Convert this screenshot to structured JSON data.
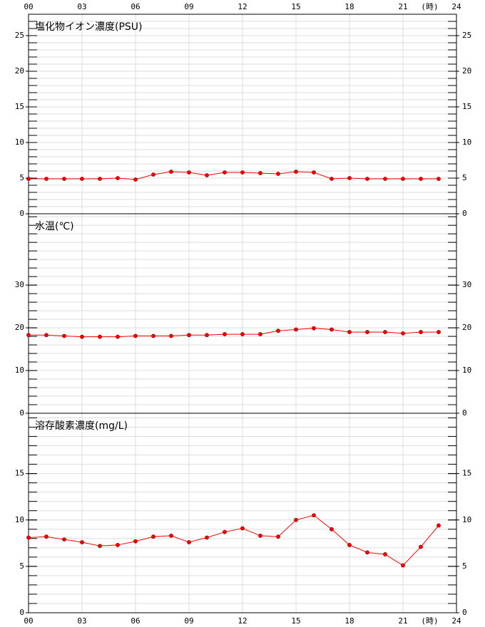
{
  "chart_data": [
    {
      "type": "line",
      "title": "塩化物イオン濃度(PSU)",
      "x_unit": "(時)",
      "x": [
        0,
        1,
        2,
        3,
        4,
        5,
        6,
        7,
        8,
        9,
        10,
        11,
        12,
        13,
        14,
        15,
        16,
        17,
        18,
        19,
        20,
        21,
        22,
        23
      ],
      "series": [
        {
          "color": "#ff0000",
          "values": [
            4.9,
            4.9,
            4.9,
            4.9,
            4.9,
            5.0,
            4.8,
            5.5,
            5.9,
            5.8,
            5.4,
            5.8,
            5.8,
            5.7,
            5.6,
            5.9,
            5.8,
            4.9,
            5.0,
            4.9,
            4.9,
            4.9,
            4.9,
            4.9
          ]
        }
      ],
      "xlim": [
        0,
        24
      ],
      "xticks": [
        {
          "value": 0,
          "label": "00"
        },
        {
          "value": 3,
          "label": "03"
        },
        {
          "value": 6,
          "label": "06"
        },
        {
          "value": 9,
          "label": "09"
        },
        12,
        15,
        18,
        21,
        24
      ],
      "ylim": [
        0,
        28
      ],
      "yticks": [
        0,
        5,
        10,
        15,
        20,
        25
      ],
      "minor_step": 1,
      "grid": true
    },
    {
      "type": "line",
      "title": "水温(℃)",
      "x": [
        0,
        1,
        2,
        3,
        4,
        5,
        6,
        7,
        8,
        9,
        10,
        11,
        12,
        13,
        14,
        15,
        16,
        17,
        18,
        19,
        20,
        21,
        22,
        23
      ],
      "series": [
        {
          "color": "#ff0000",
          "values": [
            18.3,
            18.3,
            18.1,
            17.9,
            17.9,
            17.9,
            18.1,
            18.1,
            18.1,
            18.3,
            18.3,
            18.5,
            18.5,
            18.5,
            19.3,
            19.6,
            19.9,
            19.6,
            19.0,
            19.0,
            19.0,
            18.7,
            19.0,
            19.0
          ]
        }
      ],
      "xlim": [
        0,
        24
      ],
      "xticks": [
        0,
        3,
        6,
        9,
        12,
        15,
        18,
        21,
        24
      ],
      "ylim": [
        0,
        46.7
      ],
      "yticks": [
        0,
        10,
        20,
        30
      ],
      "minor_step": 2,
      "grid": true
    },
    {
      "type": "line",
      "title": "溶存酸素濃度(mg/L)",
      "x_unit": "(時)",
      "x": [
        0,
        1,
        2,
        3,
        4,
        5,
        6,
        7,
        8,
        9,
        10,
        11,
        12,
        13,
        14,
        15,
        16,
        17,
        18,
        19,
        20,
        21,
        22,
        23
      ],
      "series": [
        {
          "color": "#ff0000",
          "values": [
            8.1,
            8.2,
            7.9,
            7.6,
            7.2,
            7.3,
            7.7,
            8.2,
            8.3,
            7.6,
            8.1,
            8.7,
            9.1,
            8.3,
            8.2,
            10.0,
            10.5,
            9.0,
            7.3,
            6.5,
            6.3,
            5.1,
            7.1,
            9.4
          ]
        }
      ],
      "xlim": [
        0,
        24
      ],
      "xticks": [
        {
          "value": 0,
          "label": "00"
        },
        {
          "value": 3,
          "label": "03"
        },
        {
          "value": 6,
          "label": "06"
        },
        {
          "value": 9,
          "label": "09"
        },
        12,
        15,
        18,
        21,
        24
      ],
      "ylim": [
        0,
        21.5
      ],
      "yticks": [
        0,
        5,
        10,
        15
      ],
      "minor_step": 1,
      "grid": true
    }
  ]
}
